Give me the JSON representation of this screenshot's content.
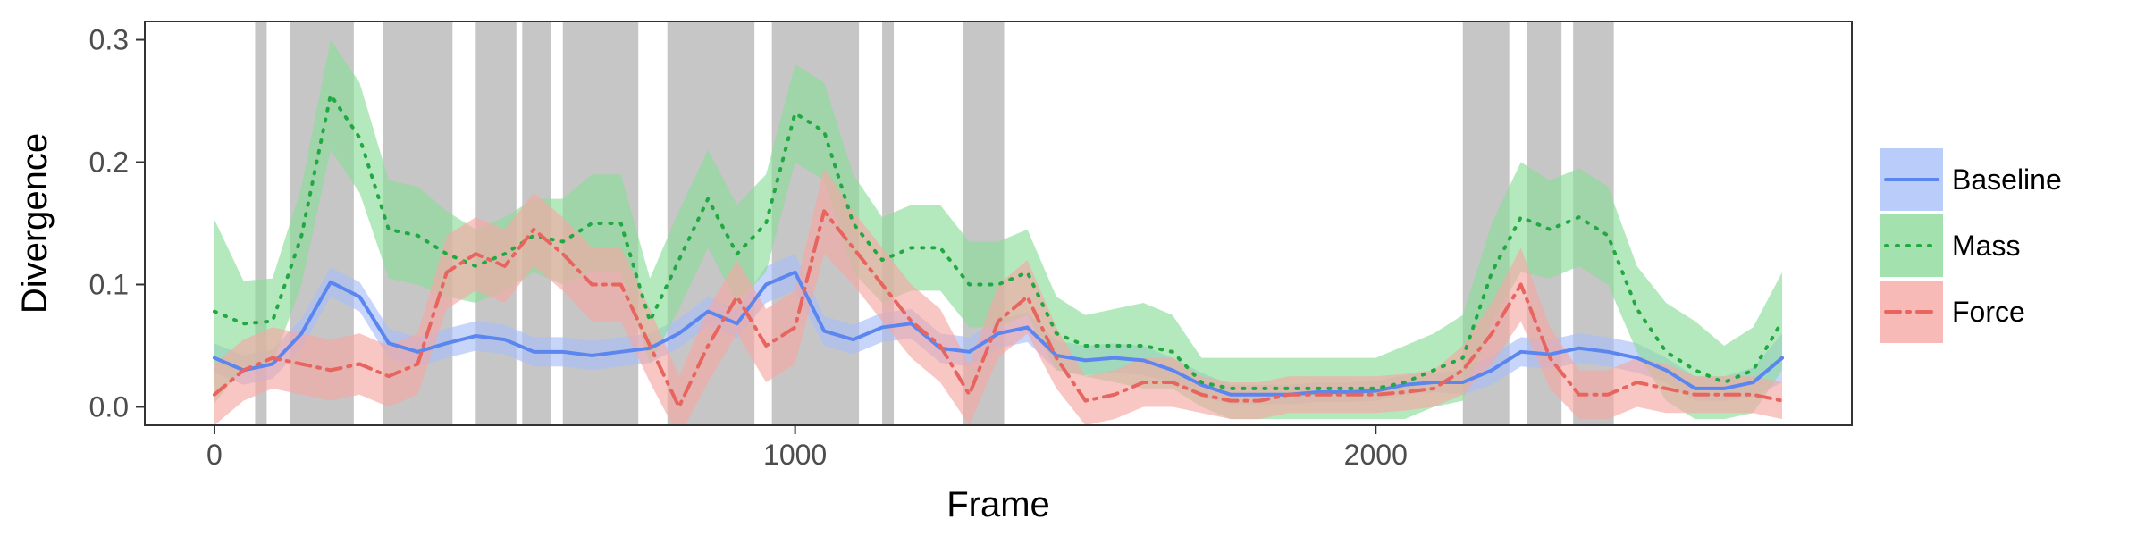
{
  "chart_data": {
    "type": "line",
    "xlabel": "Frame",
    "ylabel": "Divergence",
    "xlim": [
      -120,
      2820
    ],
    "ylim": [
      -0.015,
      0.315
    ],
    "x_ticks": [
      0,
      1000,
      2000
    ],
    "x_tick_labels": [
      "0",
      "1000",
      "2000"
    ],
    "y_ticks": [
      0.0,
      0.1,
      0.2,
      0.3
    ],
    "y_tick_labels": [
      "0.0",
      "0.1",
      "0.2",
      "0.3"
    ],
    "grid": false,
    "legend_position": "right",
    "shaded_regions": [
      [
        70,
        90
      ],
      [
        130,
        240
      ],
      [
        290,
        410
      ],
      [
        450,
        520
      ],
      [
        530,
        580
      ],
      [
        600,
        730
      ],
      [
        780,
        930
      ],
      [
        960,
        1110
      ],
      [
        1150,
        1170
      ],
      [
        1290,
        1360
      ],
      [
        2150,
        2230
      ],
      [
        2260,
        2320
      ],
      [
        2340,
        2410
      ]
    ],
    "shade_color": "#c6c6c6",
    "series": [
      {
        "name": "Baseline",
        "color": "#5b86f0",
        "fill": "#a9bff7",
        "dash": "solid",
        "x": [
          0,
          50,
          100,
          150,
          200,
          250,
          300,
          350,
          400,
          450,
          500,
          550,
          600,
          650,
          700,
          750,
          800,
          850,
          900,
          950,
          1000,
          1050,
          1100,
          1150,
          1200,
          1250,
          1300,
          1350,
          1400,
          1450,
          1500,
          1550,
          1600,
          1650,
          1700,
          1750,
          1800,
          1850,
          1900,
          1950,
          2000,
          2050,
          2100,
          2150,
          2200,
          2250,
          2300,
          2350,
          2400,
          2450,
          2500,
          2550,
          2600,
          2650,
          2700
        ],
        "y": [
          0.04,
          0.03,
          0.035,
          0.06,
          0.102,
          0.09,
          0.052,
          0.045,
          0.052,
          0.058,
          0.055,
          0.045,
          0.045,
          0.042,
          0.045,
          0.048,
          0.06,
          0.078,
          0.068,
          0.1,
          0.11,
          0.062,
          0.055,
          0.065,
          0.068,
          0.048,
          0.045,
          0.06,
          0.065,
          0.042,
          0.038,
          0.04,
          0.038,
          0.03,
          0.018,
          0.01,
          0.01,
          0.01,
          0.012,
          0.012,
          0.013,
          0.018,
          0.02,
          0.02,
          0.03,
          0.045,
          0.043,
          0.048,
          0.045,
          0.04,
          0.03,
          0.015,
          0.015,
          0.02,
          0.04
        ],
        "band": [
          0.012,
          0.012,
          0.012,
          0.012,
          0.012,
          0.012,
          0.012,
          0.012,
          0.012,
          0.012,
          0.012,
          0.012,
          0.012,
          0.012,
          0.012,
          0.012,
          0.012,
          0.012,
          0.012,
          0.015,
          0.015,
          0.012,
          0.012,
          0.012,
          0.012,
          0.012,
          0.012,
          0.012,
          0.012,
          0.012,
          0.012,
          0.012,
          0.012,
          0.01,
          0.01,
          0.008,
          0.008,
          0.008,
          0.008,
          0.008,
          0.008,
          0.008,
          0.008,
          0.01,
          0.012,
          0.012,
          0.012,
          0.012,
          0.012,
          0.012,
          0.01,
          0.01,
          0.01,
          0.012,
          0.02
        ]
      },
      {
        "name": "Mass",
        "color": "#22a843",
        "fill": "#8cdb9a",
        "dash": "dotted",
        "x": [
          0,
          50,
          100,
          150,
          200,
          250,
          300,
          350,
          400,
          450,
          500,
          550,
          600,
          650,
          700,
          750,
          800,
          850,
          900,
          950,
          1000,
          1050,
          1100,
          1150,
          1200,
          1250,
          1300,
          1350,
          1400,
          1450,
          1500,
          1550,
          1600,
          1650,
          1700,
          1750,
          1800,
          1850,
          1900,
          1950,
          2000,
          2050,
          2100,
          2150,
          2200,
          2250,
          2300,
          2350,
          2400,
          2450,
          2500,
          2550,
          2600,
          2650,
          2700
        ],
        "y": [
          0.078,
          0.068,
          0.07,
          0.14,
          0.255,
          0.22,
          0.145,
          0.14,
          0.125,
          0.115,
          0.125,
          0.14,
          0.135,
          0.15,
          0.15,
          0.07,
          0.12,
          0.17,
          0.125,
          0.15,
          0.24,
          0.225,
          0.15,
          0.12,
          0.13,
          0.13,
          0.1,
          0.1,
          0.11,
          0.06,
          0.05,
          0.05,
          0.05,
          0.045,
          0.02,
          0.015,
          0.015,
          0.015,
          0.015,
          0.015,
          0.015,
          0.02,
          0.03,
          0.04,
          0.11,
          0.155,
          0.145,
          0.155,
          0.14,
          0.08,
          0.045,
          0.03,
          0.02,
          0.03,
          0.07
        ],
        "band": [
          0.075,
          0.035,
          0.035,
          0.04,
          0.045,
          0.045,
          0.04,
          0.04,
          0.035,
          0.03,
          0.03,
          0.03,
          0.035,
          0.04,
          0.04,
          0.035,
          0.04,
          0.04,
          0.04,
          0.04,
          0.04,
          0.04,
          0.04,
          0.035,
          0.035,
          0.035,
          0.035,
          0.035,
          0.035,
          0.03,
          0.025,
          0.03,
          0.035,
          0.03,
          0.02,
          0.025,
          0.025,
          0.025,
          0.025,
          0.025,
          0.025,
          0.03,
          0.03,
          0.035,
          0.04,
          0.045,
          0.04,
          0.04,
          0.04,
          0.035,
          0.04,
          0.04,
          0.03,
          0.035,
          0.04
        ]
      },
      {
        "name": "Force",
        "color": "#e8645e",
        "fill": "#f5a9a5",
        "dash": "dashdot",
        "x": [
          0,
          50,
          100,
          150,
          200,
          250,
          300,
          350,
          400,
          450,
          500,
          550,
          600,
          650,
          700,
          750,
          800,
          850,
          900,
          950,
          1000,
          1050,
          1100,
          1150,
          1200,
          1250,
          1300,
          1350,
          1400,
          1450,
          1500,
          1550,
          1600,
          1650,
          1700,
          1750,
          1800,
          1850,
          1900,
          1950,
          2000,
          2050,
          2100,
          2150,
          2200,
          2250,
          2300,
          2350,
          2400,
          2450,
          2500,
          2550,
          2600,
          2650,
          2700
        ],
        "y": [
          0.01,
          0.03,
          0.04,
          0.035,
          0.03,
          0.035,
          0.025,
          0.035,
          0.11,
          0.125,
          0.115,
          0.145,
          0.125,
          0.1,
          0.1,
          0.05,
          0.0,
          0.05,
          0.09,
          0.05,
          0.065,
          0.16,
          0.13,
          0.1,
          0.07,
          0.05,
          0.01,
          0.07,
          0.09,
          0.04,
          0.005,
          0.01,
          0.02,
          0.02,
          0.01,
          0.005,
          0.005,
          0.01,
          0.01,
          0.01,
          0.01,
          0.012,
          0.015,
          0.03,
          0.06,
          0.1,
          0.04,
          0.01,
          0.01,
          0.02,
          0.015,
          0.01,
          0.01,
          0.01,
          0.005
        ],
        "band": [
          0.025,
          0.025,
          0.025,
          0.025,
          0.025,
          0.025,
          0.025,
          0.025,
          0.03,
          0.03,
          0.03,
          0.03,
          0.03,
          0.03,
          0.03,
          0.03,
          0.025,
          0.03,
          0.03,
          0.03,
          0.03,
          0.035,
          0.03,
          0.03,
          0.03,
          0.03,
          0.025,
          0.03,
          0.03,
          0.025,
          0.02,
          0.02,
          0.02,
          0.02,
          0.015,
          0.015,
          0.015,
          0.015,
          0.015,
          0.015,
          0.015,
          0.015,
          0.015,
          0.02,
          0.025,
          0.03,
          0.025,
          0.02,
          0.02,
          0.02,
          0.02,
          0.015,
          0.015,
          0.015,
          0.015
        ]
      }
    ]
  }
}
